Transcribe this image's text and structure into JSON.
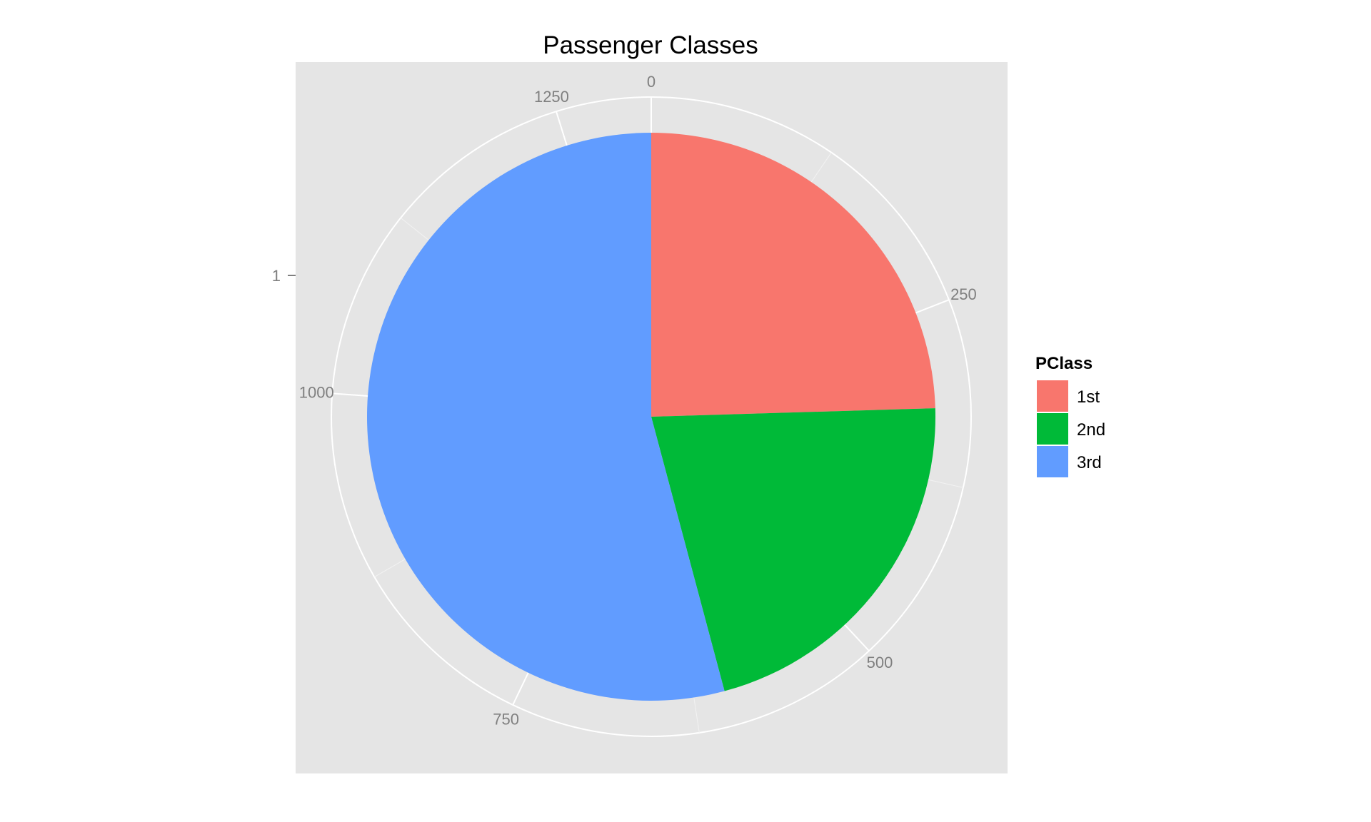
{
  "chart_data": {
    "type": "pie",
    "title": "Passenger Classes",
    "y_tick_label": "1",
    "angle_ticks": [
      "0",
      "250",
      "500",
      "750",
      "1000",
      "1250"
    ],
    "angle_tick_values": [
      0,
      250,
      500,
      750,
      1000,
      1250
    ],
    "total": 1313,
    "legend": {
      "title": "PClass",
      "placement": "right"
    },
    "slices": [
      {
        "label": "1st",
        "value": 322,
        "color": "#F8766D"
      },
      {
        "label": "2nd",
        "value": 280,
        "color": "#00BA38"
      },
      {
        "label": "3rd",
        "value": 711,
        "color": "#619CFF"
      }
    ],
    "colors": {
      "panel": "#E5E5E5",
      "grid": "#FFFFFF",
      "tick_text": "#7F7F7F"
    }
  }
}
